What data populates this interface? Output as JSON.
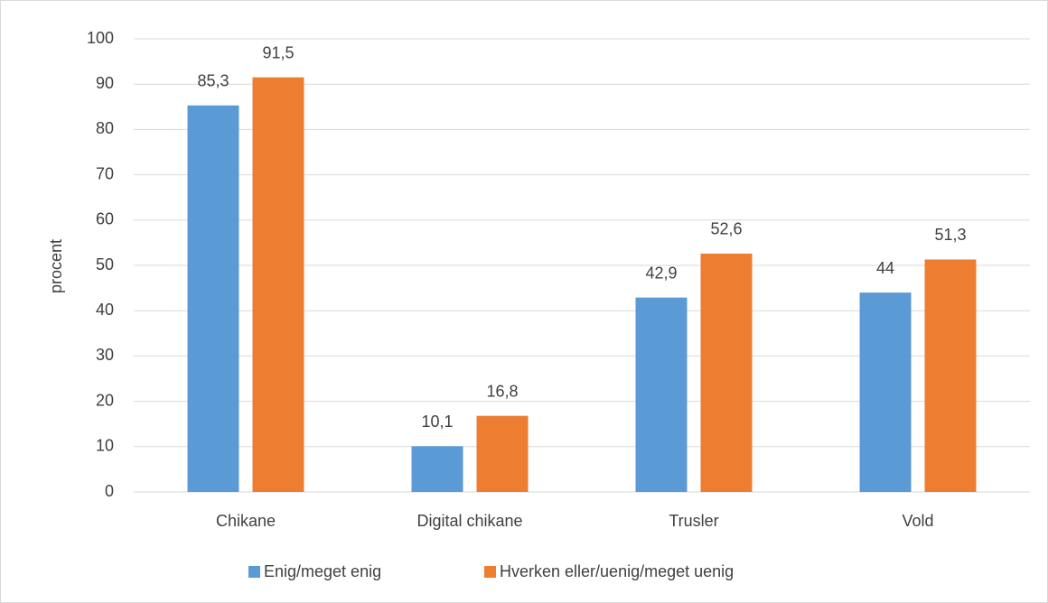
{
  "chart_data": {
    "type": "bar",
    "categories": [
      "Chikane",
      "Digital chikane",
      "Trusler",
      "Vold"
    ],
    "series": [
      {
        "name": "Enig/meget enig",
        "color": "#5b9bd5",
        "values": [
          85.3,
          10.1,
          42.9,
          44
        ],
        "value_labels": [
          "85,3",
          "10,1",
          "42,9",
          "44"
        ]
      },
      {
        "name": "Hverken eller/uenig/meget uenig",
        "color": "#ed7d31",
        "values": [
          91.5,
          16.8,
          52.6,
          51.3
        ],
        "value_labels": [
          "91,5",
          "16,8",
          "52,6",
          "51,3"
        ]
      }
    ],
    "ylabel": "procent",
    "ylim": [
      0,
      100
    ],
    "yticks": [
      0,
      10,
      20,
      30,
      40,
      50,
      60,
      70,
      80,
      90,
      100
    ],
    "grid": true,
    "legend": "bottom"
  }
}
